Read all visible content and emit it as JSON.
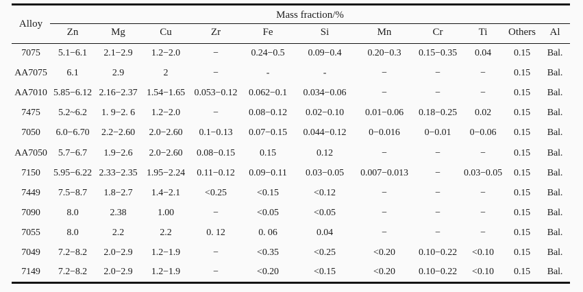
{
  "table": {
    "header": {
      "alloy_label": "Alloy",
      "group_label": "Mass fraction/%",
      "columns": [
        "Zn",
        "Mg",
        "Cu",
        "Zr",
        "Fe",
        "Si",
        "Mn",
        "Cr",
        "Ti",
        "Others",
        "Al"
      ]
    },
    "rows": [
      {
        "alloy": "7075",
        "values": [
          "5.1−6.1",
          "2.1−2.9",
          "1.2−2.0",
          "−",
          "0.24−0.5",
          "0.09−0.4",
          "0.20−0.3",
          "0.15−0.35",
          "0.04",
          "0.15",
          "Bal."
        ]
      },
      {
        "alloy": "AA7075",
        "values": [
          "6.1",
          "2.9",
          "2",
          "−",
          "-",
          "-",
          "−",
          "−",
          "−",
          "0.15",
          "Bal."
        ]
      },
      {
        "alloy": "AA7010",
        "values": [
          "5.85−6.12",
          "2.16−2.37",
          "1.54−1.65",
          "0.053−0.12",
          "0.062−0.1",
          "0.034−0.06",
          "−",
          "−",
          "−",
          "0.15",
          "Bal."
        ]
      },
      {
        "alloy": "7475",
        "values": [
          "5.2~6.2",
          "1. 9−2. 6",
          "1.2−2.0",
          "−",
          "0.08−0.12",
          "0.02−0.10",
          "0.01−0.06",
          "0.18−0.25",
          "0.02",
          "0.15",
          "Bal."
        ]
      },
      {
        "alloy": "7050",
        "values": [
          "6.0−6.70",
          "2.2−2.60",
          "2.0−2.60",
          "0.1−0.13",
          "0.07−0.15",
          "0.044−0.12",
          "0−0.016",
          "0−0.01",
          "0−0.06",
          "0.15",
          "Bal."
        ]
      },
      {
        "alloy": "AA7050",
        "values": [
          "5.7−6.7",
          "1.9−2.6",
          "2.0−2.60",
          "0.08−0.15",
          "0.15",
          "0.12",
          "−",
          "−",
          "−",
          "0.15",
          "Bal."
        ]
      },
      {
        "alloy": "7150",
        "values": [
          "5.95−6.22",
          "2.33−2.35",
          "1.95−2.24",
          "0.11−0.12",
          "0.09−0.11",
          "0.03−0.05",
          "0.007−0.013",
          "−",
          "0.03−0.05",
          "0.15",
          "Bal."
        ]
      },
      {
        "alloy": "7449",
        "values": [
          "7.5−8.7",
          "1.8−2.7",
          "1.4−2.1",
          "<0.25",
          "<0.15",
          "<0.12",
          "−",
          "−",
          "−",
          "0.15",
          "Bal."
        ]
      },
      {
        "alloy": "7090",
        "values": [
          "8.0",
          "2.38",
          "1.00",
          "−",
          "<0.05",
          "<0.05",
          "−",
          "−",
          "−",
          "0.15",
          "Bal."
        ]
      },
      {
        "alloy": "7055",
        "values": [
          "8.0",
          "2.2",
          "2.2",
          "0. 12",
          "0. 06",
          "0.04",
          "−",
          "−",
          "−",
          "0.15",
          "Bal."
        ]
      },
      {
        "alloy": "7049",
        "values": [
          "7.2−8.2",
          "2.0−2.9",
          "1.2−1.9",
          "−",
          "<0.35",
          "<0.25",
          "<0.20",
          "0.10−0.22",
          "<0.10",
          "0.15",
          "Bal."
        ]
      },
      {
        "alloy": "7149",
        "values": [
          "7.2−8.2",
          "2.0−2.9",
          "1.2−1.9",
          "−",
          "<0.20",
          "<0.15",
          "<0.20",
          "0.10−0.22",
          "<0.10",
          "0.15",
          "Bal."
        ]
      }
    ],
    "colors": {
      "rule": "#141414",
      "text": "#1c1c1c",
      "background": "#fafafa"
    }
  }
}
